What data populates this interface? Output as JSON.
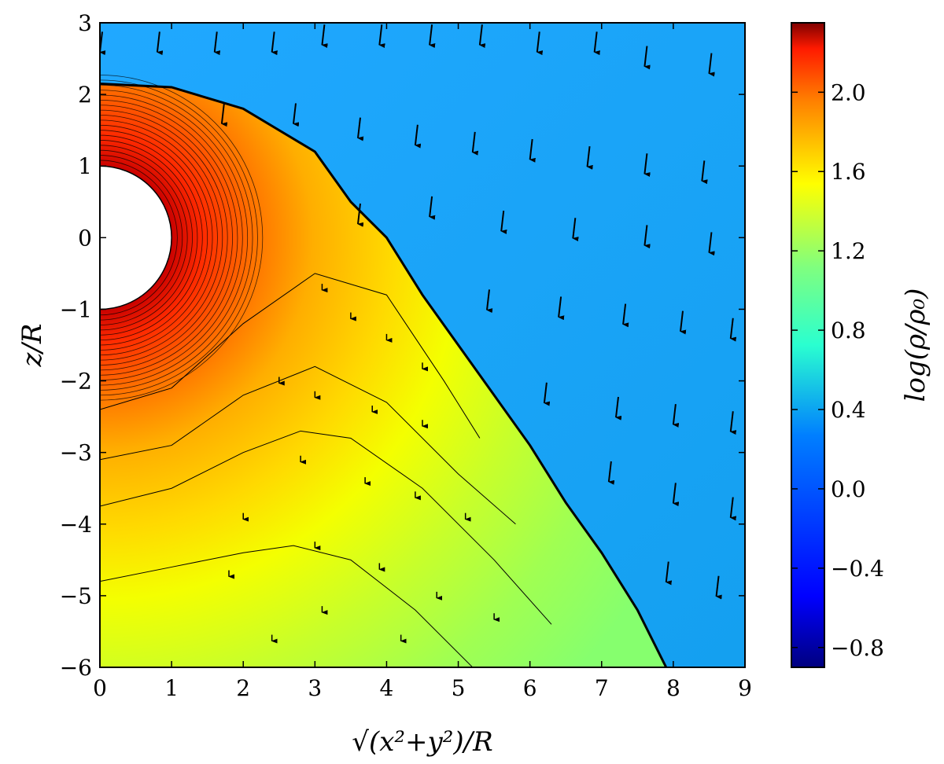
{
  "chart_data": {
    "type": "heatmap",
    "title": "",
    "xlabel": "√(x²+y²)/R",
    "ylabel": "z/R",
    "colorbar_label": "log(ρ/ρ₀)",
    "xlim": [
      0,
      9
    ],
    "ylim": [
      -6,
      3
    ],
    "x_ticks": [
      "0",
      "1",
      "2",
      "3",
      "4",
      "5",
      "6",
      "7",
      "8",
      "9"
    ],
    "y_ticks": [
      "3",
      "2",
      "1",
      "0",
      "−1",
      "−2",
      "−3",
      "−4",
      "−5",
      "−6"
    ],
    "colorbar": {
      "range": [
        -0.9,
        2.35
      ],
      "ticks": [
        "2.0",
        "1.6",
        "1.2",
        "0.8",
        "0.4",
        "0.0",
        "−0.4",
        "−0.8"
      ],
      "tick_values": [
        2.0,
        1.6,
        1.2,
        0.8,
        0.4,
        0.0,
        -0.4,
        -0.8
      ],
      "colormap": "jet"
    },
    "star": {
      "center": [
        0,
        0
      ],
      "radius": 1
    },
    "shock_boundary": [
      [
        0,
        2.15
      ],
      [
        1,
        2.1
      ],
      [
        2,
        1.8
      ],
      [
        3,
        1.2
      ],
      [
        3.5,
        0.5
      ],
      [
        4,
        0
      ],
      [
        4.5,
        -0.8
      ],
      [
        5,
        -1.5
      ],
      [
        5.5,
        -2.2
      ],
      [
        6,
        -2.9
      ],
      [
        6.5,
        -3.7
      ],
      [
        7,
        -4.4
      ],
      [
        7.5,
        -5.2
      ],
      [
        7.9,
        -6
      ]
    ],
    "regions": {
      "ambient_wind_value": 0.05,
      "shell_near_star_value": 2.2,
      "shell_far_value": 0.9
    },
    "contours": [
      {
        "level": 1.25,
        "points": [
          [
            0,
            -2.4
          ],
          [
            1,
            -2.1
          ],
          [
            2,
            -1.2
          ],
          [
            3,
            -0.5
          ],
          [
            4,
            -0.8
          ],
          [
            4.8,
            -2.0
          ],
          [
            5.3,
            -2.8
          ]
        ]
      },
      {
        "level": 1.15,
        "points": [
          [
            0,
            -3.1
          ],
          [
            1,
            -2.9
          ],
          [
            2,
            -2.2
          ],
          [
            3,
            -1.8
          ],
          [
            4,
            -2.3
          ],
          [
            5,
            -3.3
          ],
          [
            5.8,
            -4.0
          ]
        ]
      },
      {
        "level": 1.05,
        "points": [
          [
            0,
            -3.75
          ],
          [
            1,
            -3.5
          ],
          [
            2,
            -3.0
          ],
          [
            2.8,
            -2.7
          ],
          [
            3.5,
            -2.8
          ],
          [
            4.5,
            -3.5
          ],
          [
            5.5,
            -4.5
          ],
          [
            6.3,
            -5.4
          ]
        ]
      },
      {
        "level": 0.95,
        "points": [
          [
            0,
            -4.8
          ],
          [
            1,
            -4.6
          ],
          [
            2,
            -4.4
          ],
          [
            2.7,
            -4.3
          ],
          [
            3.5,
            -4.5
          ],
          [
            4.4,
            -5.2
          ],
          [
            5.2,
            -6.0
          ]
        ]
      }
    ],
    "velocity_arrows": {
      "description": "velocity field",
      "ambient": [
        [
          0.0,
          2.7
        ],
        [
          0.8,
          2.7
        ],
        [
          1.6,
          2.7
        ],
        [
          2.4,
          2.7
        ],
        [
          3.1,
          2.8
        ],
        [
          3.9,
          2.8
        ],
        [
          4.6,
          2.8
        ],
        [
          5.3,
          2.8
        ],
        [
          6.1,
          2.7
        ],
        [
          6.9,
          2.7
        ],
        [
          7.6,
          2.5
        ],
        [
          8.5,
          2.4
        ],
        [
          1.7,
          1.7
        ],
        [
          2.7,
          1.7
        ],
        [
          3.6,
          1.5
        ],
        [
          4.4,
          1.4
        ],
        [
          5.2,
          1.3
        ],
        [
          6.0,
          1.2
        ],
        [
          6.8,
          1.1
        ],
        [
          7.6,
          1.0
        ],
        [
          8.4,
          0.9
        ],
        [
          3.6,
          0.3
        ],
        [
          4.6,
          0.4
        ],
        [
          5.6,
          0.2
        ],
        [
          6.6,
          0.1
        ],
        [
          7.6,
          0.0
        ],
        [
          8.5,
          -0.1
        ],
        [
          5.4,
          -0.9
        ],
        [
          6.4,
          -1.0
        ],
        [
          7.3,
          -1.1
        ],
        [
          8.1,
          -1.2
        ],
        [
          8.8,
          -1.3
        ],
        [
          6.2,
          -2.2
        ],
        [
          7.2,
          -2.4
        ],
        [
          8.0,
          -2.5
        ],
        [
          8.8,
          -2.6
        ],
        [
          7.1,
          -3.3
        ],
        [
          8.0,
          -3.6
        ],
        [
          8.8,
          -3.8
        ],
        [
          7.9,
          -4.7
        ],
        [
          8.6,
          -4.9
        ]
      ],
      "shell": [
        [
          3.1,
          -0.7
        ],
        [
          3.5,
          -1.1
        ],
        [
          4.0,
          -1.4
        ],
        [
          4.5,
          -1.8
        ],
        [
          2.5,
          -2.0
        ],
        [
          3.0,
          -2.2
        ],
        [
          3.8,
          -2.4
        ],
        [
          4.5,
          -2.6
        ],
        [
          2.8,
          -3.1
        ],
        [
          3.7,
          -3.4
        ],
        [
          4.4,
          -3.6
        ],
        [
          5.1,
          -3.9
        ],
        [
          2.0,
          -3.9
        ],
        [
          3.0,
          -4.3
        ],
        [
          3.9,
          -4.6
        ],
        [
          4.7,
          -5.0
        ],
        [
          3.1,
          -5.2
        ],
        [
          4.2,
          -5.6
        ],
        [
          1.8,
          -4.7
        ],
        [
          2.4,
          -5.6
        ],
        [
          5.5,
          -5.3
        ]
      ]
    }
  }
}
